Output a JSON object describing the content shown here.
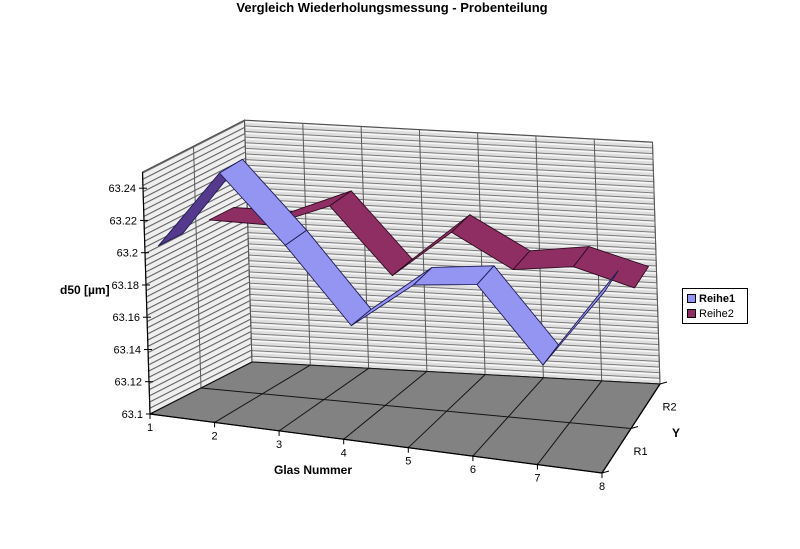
{
  "title": "Vergleich Wiederholungsmessung - Probenteilung",
  "axes": {
    "value_axis_title": "d50 [µm]",
    "category_axis_title": "Glas Nummer",
    "depth_axis_title": "Y"
  },
  "chart_data": {
    "type": "line",
    "style": "3d-ribbon",
    "title": "Vergleich Wiederholungsmessung - Probenteilung",
    "xlabel": "Glas Nummer",
    "ylabel": "d50 [µm]",
    "depth_label": "Y",
    "categories": [
      1,
      2,
      3,
      4,
      5,
      6,
      7,
      8
    ],
    "series": [
      {
        "name": "Reihe1",
        "row": "R1",
        "values": [
          63.2,
          63.25,
          63.21,
          63.165,
          63.195,
          63.2,
          63.155,
          63.205
        ]
      },
      {
        "name": "Reihe2",
        "row": "R2",
        "values": [
          63.2,
          63.2,
          63.215,
          63.175,
          63.205,
          63.185,
          63.19,
          63.18
        ]
      }
    ],
    "ylim": [
      63.1,
      63.25
    ],
    "ytick_step": 0.02,
    "ytick_labels": [
      "63.1",
      "63.12",
      "63.14",
      "63.16",
      "63.18",
      "63.2",
      "63.22",
      "63.24"
    ],
    "depth_rows": [
      "R1",
      "R2"
    ],
    "legend_position": "right",
    "grid": true
  },
  "legend": {
    "entries": [
      {
        "label": "Reihe1",
        "bold": true
      },
      {
        "label": "Reihe2",
        "bold": false
      }
    ]
  },
  "colors": {
    "series1": "#9494F2",
    "series1_dark": "#55398C",
    "series1_edge": "#1E1B52",
    "series2": "#8F2E63",
    "series2_dark": "#6E2048",
    "series2_edge": "#2E0A20",
    "wall_bg": "#DEDEDE",
    "wall_line": "#787878",
    "wall_highlight": "#F7F7F7",
    "wall_left_bg": "#EFEFEF",
    "wall_left_line": "#606060",
    "wall_border": "#4D4D4D",
    "wall_grid": "#5A5A5A",
    "floor": "#828282",
    "floor_line": "#141414",
    "axis": "#000000",
    "text": "#000000",
    "legend_border": "#000000",
    "background": "#FFFFFF"
  }
}
